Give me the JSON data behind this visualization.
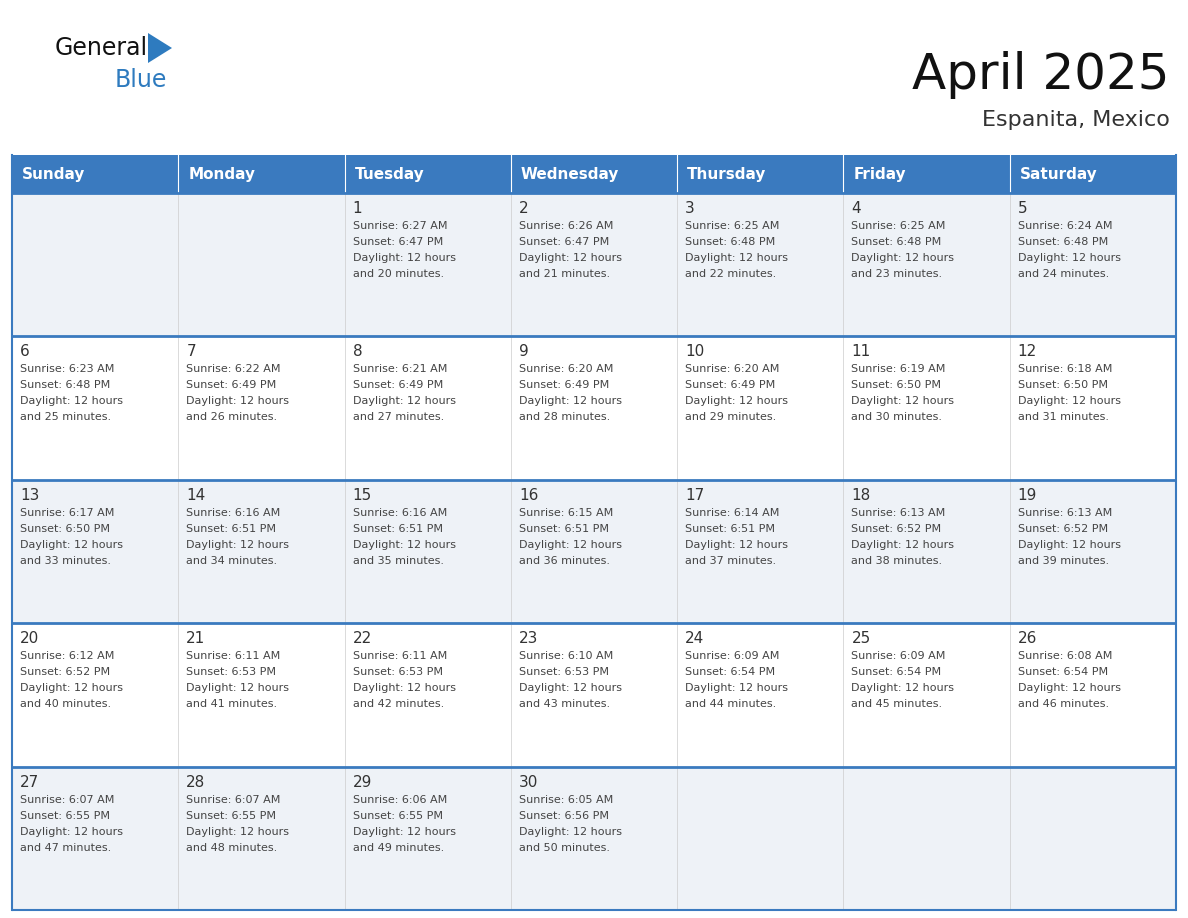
{
  "title": "April 2025",
  "subtitle": "Espanita, Mexico",
  "days_of_week": [
    "Sunday",
    "Monday",
    "Tuesday",
    "Wednesday",
    "Thursday",
    "Friday",
    "Saturday"
  ],
  "header_bg": "#3a7abf",
  "header_text_color": "#ffffff",
  "cell_bg_odd": "#eef2f7",
  "cell_bg_even": "#ffffff",
  "border_color": "#3a7abf",
  "separator_color": "#3a7abf",
  "day_number_color": "#333333",
  "text_color": "#444444",
  "logo_blue": "#2e7bbf",
  "logo_black": "#111111",
  "calendar_data": [
    [
      {
        "day": null,
        "sunrise": null,
        "sunset": null,
        "daylight_min": null
      },
      {
        "day": null,
        "sunrise": null,
        "sunset": null,
        "daylight_min": null
      },
      {
        "day": 1,
        "sunrise": "6:27 AM",
        "sunset": "6:47 PM",
        "daylight_min": 20
      },
      {
        "day": 2,
        "sunrise": "6:26 AM",
        "sunset": "6:47 PM",
        "daylight_min": 21
      },
      {
        "day": 3,
        "sunrise": "6:25 AM",
        "sunset": "6:48 PM",
        "daylight_min": 22
      },
      {
        "day": 4,
        "sunrise": "6:25 AM",
        "sunset": "6:48 PM",
        "daylight_min": 23
      },
      {
        "day": 5,
        "sunrise": "6:24 AM",
        "sunset": "6:48 PM",
        "daylight_min": 24
      }
    ],
    [
      {
        "day": 6,
        "sunrise": "6:23 AM",
        "sunset": "6:48 PM",
        "daylight_min": 25
      },
      {
        "day": 7,
        "sunrise": "6:22 AM",
        "sunset": "6:49 PM",
        "daylight_min": 26
      },
      {
        "day": 8,
        "sunrise": "6:21 AM",
        "sunset": "6:49 PM",
        "daylight_min": 27
      },
      {
        "day": 9,
        "sunrise": "6:20 AM",
        "sunset": "6:49 PM",
        "daylight_min": 28
      },
      {
        "day": 10,
        "sunrise": "6:20 AM",
        "sunset": "6:49 PM",
        "daylight_min": 29
      },
      {
        "day": 11,
        "sunrise": "6:19 AM",
        "sunset": "6:50 PM",
        "daylight_min": 30
      },
      {
        "day": 12,
        "sunrise": "6:18 AM",
        "sunset": "6:50 PM",
        "daylight_min": 31
      }
    ],
    [
      {
        "day": 13,
        "sunrise": "6:17 AM",
        "sunset": "6:50 PM",
        "daylight_min": 33
      },
      {
        "day": 14,
        "sunrise": "6:16 AM",
        "sunset": "6:51 PM",
        "daylight_min": 34
      },
      {
        "day": 15,
        "sunrise": "6:16 AM",
        "sunset": "6:51 PM",
        "daylight_min": 35
      },
      {
        "day": 16,
        "sunrise": "6:15 AM",
        "sunset": "6:51 PM",
        "daylight_min": 36
      },
      {
        "day": 17,
        "sunrise": "6:14 AM",
        "sunset": "6:51 PM",
        "daylight_min": 37
      },
      {
        "day": 18,
        "sunrise": "6:13 AM",
        "sunset": "6:52 PM",
        "daylight_min": 38
      },
      {
        "day": 19,
        "sunrise": "6:13 AM",
        "sunset": "6:52 PM",
        "daylight_min": 39
      }
    ],
    [
      {
        "day": 20,
        "sunrise": "6:12 AM",
        "sunset": "6:52 PM",
        "daylight_min": 40
      },
      {
        "day": 21,
        "sunrise": "6:11 AM",
        "sunset": "6:53 PM",
        "daylight_min": 41
      },
      {
        "day": 22,
        "sunrise": "6:11 AM",
        "sunset": "6:53 PM",
        "daylight_min": 42
      },
      {
        "day": 23,
        "sunrise": "6:10 AM",
        "sunset": "6:53 PM",
        "daylight_min": 43
      },
      {
        "day": 24,
        "sunrise": "6:09 AM",
        "sunset": "6:54 PM",
        "daylight_min": 44
      },
      {
        "day": 25,
        "sunrise": "6:09 AM",
        "sunset": "6:54 PM",
        "daylight_min": 45
      },
      {
        "day": 26,
        "sunrise": "6:08 AM",
        "sunset": "6:54 PM",
        "daylight_min": 46
      }
    ],
    [
      {
        "day": 27,
        "sunrise": "6:07 AM",
        "sunset": "6:55 PM",
        "daylight_min": 47
      },
      {
        "day": 28,
        "sunrise": "6:07 AM",
        "sunset": "6:55 PM",
        "daylight_min": 48
      },
      {
        "day": 29,
        "sunrise": "6:06 AM",
        "sunset": "6:55 PM",
        "daylight_min": 49
      },
      {
        "day": 30,
        "sunrise": "6:05 AM",
        "sunset": "6:56 PM",
        "daylight_min": 50
      },
      {
        "day": null,
        "sunrise": null,
        "sunset": null,
        "daylight_min": null
      },
      {
        "day": null,
        "sunrise": null,
        "sunset": null,
        "daylight_min": null
      },
      {
        "day": null,
        "sunrise": null,
        "sunset": null,
        "daylight_min": null
      }
    ]
  ]
}
